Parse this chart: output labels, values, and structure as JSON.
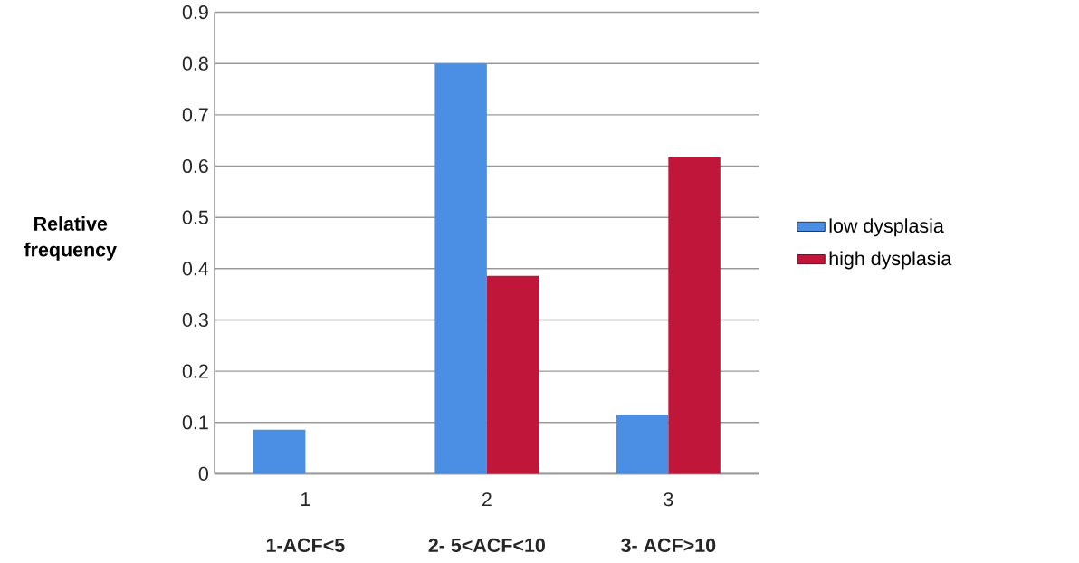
{
  "chart_data": {
    "type": "bar",
    "ylabel": "Relative frequency",
    "categories": [
      "1",
      "2",
      "3"
    ],
    "series": [
      {
        "name": "low dysplasia",
        "color": "#4a8fe3",
        "values": [
          0.086,
          0.8,
          0.115
        ]
      },
      {
        "name": "high dysplasia",
        "color": "#c0163a",
        "values": [
          0,
          0.386,
          0.617
        ]
      }
    ],
    "ylim": [
      0,
      0.9
    ],
    "yticks": [
      0,
      0.1,
      0.2,
      0.3,
      0.4,
      0.5,
      0.6,
      0.7,
      0.8,
      0.9
    ],
    "grid": "y",
    "legend": "right",
    "annotations": [
      "1-ACF<5",
      "2- 5<ACF<10",
      "3- ACF>10"
    ]
  }
}
